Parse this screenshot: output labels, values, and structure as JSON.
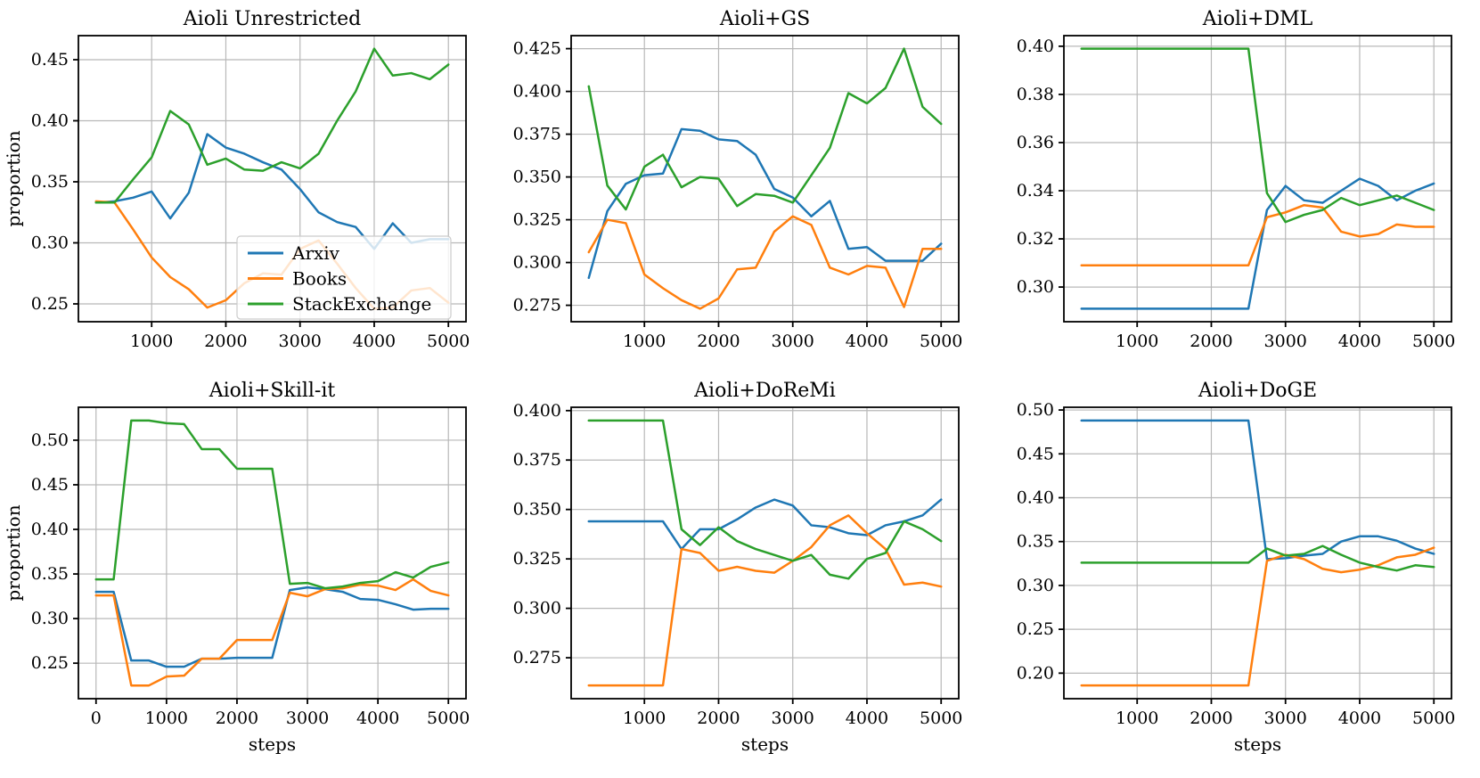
{
  "figure": {
    "background": "#ffffff",
    "grid_color": "#b8b8b8",
    "spine_color": "#000000",
    "legend_edge_color": "#cccccc",
    "legend_fill": "rgba(255,255,255,0.8)"
  },
  "series_colors": {
    "Arxiv": "#1f77b4",
    "Books": "#ff7f0e",
    "StackExchange": "#2ca02c"
  },
  "legend": {
    "labels": [
      "Arxiv",
      "Books",
      "StackExchange"
    ]
  },
  "chart_data": [
    {
      "type": "line",
      "title": "Aioli Unrestricted",
      "xlabel": "",
      "ylabel": "proportion",
      "show_legend": true,
      "grid": true,
      "xlim": [
        12.5,
        5237.5
      ],
      "ylim": [
        0.2354,
        0.4697
      ],
      "xticks": [
        1000,
        2000,
        3000,
        4000,
        5000
      ],
      "yticks": [
        0.25,
        0.3,
        0.35,
        0.4,
        0.45
      ],
      "ytick_decimals": 2,
      "x": [
        250,
        500,
        750,
        1000,
        1250,
        1500,
        1750,
        2000,
        2250,
        2500,
        2750,
        3000,
        3250,
        3500,
        3750,
        4000,
        4250,
        4500,
        4750,
        5000
      ],
      "series": [
        {
          "name": "Arxiv",
          "color": "#1f77b4",
          "values": [
            0.333,
            0.334,
            0.337,
            0.342,
            0.32,
            0.341,
            0.389,
            0.378,
            0.373,
            0.366,
            0.36,
            0.344,
            0.325,
            0.317,
            0.313,
            0.295,
            0.316,
            0.3,
            0.303,
            0.303
          ]
        },
        {
          "name": "Books",
          "color": "#ff7f0e",
          "values": [
            0.334,
            0.333,
            0.311,
            0.288,
            0.272,
            0.262,
            0.247,
            0.253,
            0.267,
            0.275,
            0.274,
            0.295,
            0.302,
            0.283,
            0.263,
            0.246,
            0.247,
            0.261,
            0.263,
            0.251
          ]
        },
        {
          "name": "StackExchange",
          "color": "#2ca02c",
          "values": [
            0.333,
            0.333,
            0.352,
            0.37,
            0.408,
            0.397,
            0.364,
            0.369,
            0.36,
            0.359,
            0.366,
            0.361,
            0.373,
            0.4,
            0.424,
            0.459,
            0.437,
            0.439,
            0.434,
            0.446
          ]
        }
      ]
    },
    {
      "type": "line",
      "title": "Aioli+GS",
      "xlabel": "",
      "ylabel": "",
      "show_legend": false,
      "grid": true,
      "xlim": [
        12.5,
        5237.5
      ],
      "ylim": [
        0.2654,
        0.4326
      ],
      "xticks": [
        1000,
        2000,
        3000,
        4000,
        5000
      ],
      "yticks": [
        0.275,
        0.3,
        0.325,
        0.35,
        0.375,
        0.4,
        0.425
      ],
      "ytick_decimals": 3,
      "x": [
        250,
        500,
        750,
        1000,
        1250,
        1500,
        1750,
        2000,
        2250,
        2500,
        2750,
        3000,
        3250,
        3500,
        3750,
        4000,
        4250,
        4500,
        4750,
        5000
      ],
      "series": [
        {
          "name": "Arxiv",
          "color": "#1f77b4",
          "values": [
            0.291,
            0.33,
            0.346,
            0.351,
            0.352,
            0.378,
            0.377,
            0.372,
            0.371,
            0.363,
            0.343,
            0.338,
            0.327,
            0.336,
            0.308,
            0.309,
            0.301,
            0.301,
            0.301,
            0.311
          ]
        },
        {
          "name": "Books",
          "color": "#ff7f0e",
          "values": [
            0.306,
            0.325,
            0.323,
            0.293,
            0.285,
            0.278,
            0.273,
            0.279,
            0.296,
            0.297,
            0.318,
            0.327,
            0.322,
            0.297,
            0.293,
            0.298,
            0.297,
            0.274,
            0.308,
            0.308
          ]
        },
        {
          "name": "StackExchange",
          "color": "#2ca02c",
          "values": [
            0.403,
            0.345,
            0.331,
            0.356,
            0.363,
            0.344,
            0.35,
            0.349,
            0.333,
            0.34,
            0.339,
            0.335,
            0.351,
            0.367,
            0.399,
            0.393,
            0.402,
            0.425,
            0.391,
            0.381
          ]
        }
      ]
    },
    {
      "type": "line",
      "title": "Aioli+DML",
      "xlabel": "",
      "ylabel": "",
      "show_legend": false,
      "grid": true,
      "xlim": [
        12.5,
        5237.5
      ],
      "ylim": [
        0.2856,
        0.4044
      ],
      "xticks": [
        1000,
        2000,
        3000,
        4000,
        5000
      ],
      "yticks": [
        0.3,
        0.32,
        0.34,
        0.36,
        0.38,
        0.4
      ],
      "ytick_decimals": 2,
      "x": [
        250,
        500,
        750,
        1000,
        1250,
        1500,
        1750,
        2000,
        2250,
        2500,
        2750,
        3000,
        3250,
        3500,
        3750,
        4000,
        4250,
        4500,
        4750,
        5000
      ],
      "series": [
        {
          "name": "Arxiv",
          "color": "#1f77b4",
          "values": [
            0.291,
            0.291,
            0.291,
            0.291,
            0.291,
            0.291,
            0.291,
            0.291,
            0.291,
            0.291,
            0.332,
            0.342,
            0.336,
            0.335,
            0.34,
            0.345,
            0.342,
            0.336,
            0.34,
            0.343
          ]
        },
        {
          "name": "Books",
          "color": "#ff7f0e",
          "values": [
            0.309,
            0.309,
            0.309,
            0.309,
            0.309,
            0.309,
            0.309,
            0.309,
            0.309,
            0.309,
            0.329,
            0.331,
            0.334,
            0.333,
            0.323,
            0.321,
            0.322,
            0.326,
            0.325,
            0.325
          ]
        },
        {
          "name": "StackExchange",
          "color": "#2ca02c",
          "values": [
            0.399,
            0.399,
            0.399,
            0.399,
            0.399,
            0.399,
            0.399,
            0.399,
            0.399,
            0.399,
            0.339,
            0.327,
            0.33,
            0.332,
            0.337,
            0.334,
            0.336,
            0.338,
            0.335,
            0.332
          ]
        }
      ]
    },
    {
      "type": "line",
      "title": "Aioli+Skill-it",
      "xlabel": "steps",
      "ylabel": "proportion",
      "show_legend": false,
      "grid": true,
      "xlim": [
        -250,
        5250
      ],
      "ylim": [
        0.2102,
        0.5369
      ],
      "xticks": [
        0,
        1000,
        2000,
        3000,
        4000,
        5000
      ],
      "yticks": [
        0.25,
        0.3,
        0.35,
        0.4,
        0.45,
        0.5
      ],
      "ytick_decimals": 2,
      "x": [
        0,
        250,
        500,
        750,
        1000,
        1250,
        1500,
        1750,
        2000,
        2250,
        2500,
        2750,
        3000,
        3250,
        3500,
        3750,
        4000,
        4250,
        4500,
        4750,
        5000
      ],
      "series": [
        {
          "name": "Arxiv",
          "color": "#1f77b4",
          "values": [
            0.33,
            0.33,
            0.253,
            0.253,
            0.246,
            0.246,
            0.255,
            0.255,
            0.256,
            0.256,
            0.256,
            0.332,
            0.335,
            0.333,
            0.33,
            0.322,
            0.321,
            0.316,
            0.31,
            0.311,
            0.311
          ]
        },
        {
          "name": "Books",
          "color": "#ff7f0e",
          "values": [
            0.326,
            0.326,
            0.225,
            0.225,
            0.235,
            0.236,
            0.255,
            0.255,
            0.276,
            0.276,
            0.276,
            0.329,
            0.325,
            0.333,
            0.334,
            0.338,
            0.337,
            0.332,
            0.344,
            0.331,
            0.326
          ]
        },
        {
          "name": "StackExchange",
          "color": "#2ca02c",
          "values": [
            0.344,
            0.344,
            0.522,
            0.522,
            0.519,
            0.518,
            0.49,
            0.49,
            0.468,
            0.468,
            0.468,
            0.339,
            0.34,
            0.334,
            0.336,
            0.34,
            0.342,
            0.352,
            0.346,
            0.358,
            0.363
          ]
        }
      ]
    },
    {
      "type": "line",
      "title": "Aioli+DoReMi",
      "xlabel": "steps",
      "ylabel": "",
      "show_legend": false,
      "grid": true,
      "xlim": [
        12.5,
        5237.5
      ],
      "ylim": [
        0.2543,
        0.4017
      ],
      "xticks": [
        1000,
        2000,
        3000,
        4000,
        5000
      ],
      "yticks": [
        0.275,
        0.3,
        0.325,
        0.35,
        0.375,
        0.4
      ],
      "ytick_decimals": 3,
      "x": [
        250,
        500,
        750,
        1000,
        1250,
        1500,
        1750,
        2000,
        2250,
        2500,
        2750,
        3000,
        3250,
        3500,
        3750,
        4000,
        4250,
        4500,
        4750,
        5000
      ],
      "series": [
        {
          "name": "Arxiv",
          "color": "#1f77b4",
          "values": [
            0.344,
            0.344,
            0.344,
            0.344,
            0.344,
            0.33,
            0.34,
            0.34,
            0.345,
            0.351,
            0.355,
            0.352,
            0.342,
            0.341,
            0.338,
            0.337,
            0.342,
            0.344,
            0.347,
            0.355
          ]
        },
        {
          "name": "Books",
          "color": "#ff7f0e",
          "values": [
            0.261,
            0.261,
            0.261,
            0.261,
            0.261,
            0.33,
            0.328,
            0.319,
            0.321,
            0.319,
            0.318,
            0.324,
            0.331,
            0.342,
            0.347,
            0.338,
            0.33,
            0.312,
            0.313,
            0.311
          ]
        },
        {
          "name": "StackExchange",
          "color": "#2ca02c",
          "values": [
            0.395,
            0.395,
            0.395,
            0.395,
            0.395,
            0.34,
            0.332,
            0.341,
            0.334,
            0.33,
            0.327,
            0.324,
            0.327,
            0.317,
            0.315,
            0.325,
            0.328,
            0.344,
            0.34,
            0.334
          ]
        }
      ]
    },
    {
      "type": "line",
      "title": "Aioli+DoGE",
      "xlabel": "steps",
      "ylabel": "",
      "show_legend": false,
      "grid": true,
      "xlim": [
        12.5,
        5237.5
      ],
      "ylim": [
        0.1709,
        0.5031
      ],
      "xticks": [
        1000,
        2000,
        3000,
        4000,
        5000
      ],
      "yticks": [
        0.2,
        0.25,
        0.3,
        0.35,
        0.4,
        0.45,
        0.5
      ],
      "ytick_decimals": 2,
      "x": [
        250,
        500,
        750,
        1000,
        1250,
        1500,
        1750,
        2000,
        2250,
        2500,
        2750,
        3000,
        3250,
        3500,
        3750,
        4000,
        4250,
        4500,
        4750,
        5000
      ],
      "series": [
        {
          "name": "Arxiv",
          "color": "#1f77b4",
          "values": [
            0.488,
            0.488,
            0.488,
            0.488,
            0.488,
            0.488,
            0.488,
            0.488,
            0.488,
            0.488,
            0.33,
            0.331,
            0.334,
            0.336,
            0.35,
            0.356,
            0.356,
            0.351,
            0.342,
            0.336
          ]
        },
        {
          "name": "Books",
          "color": "#ff7f0e",
          "values": [
            0.186,
            0.186,
            0.186,
            0.186,
            0.186,
            0.186,
            0.186,
            0.186,
            0.186,
            0.186,
            0.328,
            0.335,
            0.33,
            0.319,
            0.315,
            0.318,
            0.323,
            0.332,
            0.335,
            0.343
          ]
        },
        {
          "name": "StackExchange",
          "color": "#2ca02c",
          "values": [
            0.326,
            0.326,
            0.326,
            0.326,
            0.326,
            0.326,
            0.326,
            0.326,
            0.326,
            0.326,
            0.342,
            0.334,
            0.336,
            0.345,
            0.335,
            0.326,
            0.321,
            0.317,
            0.323,
            0.321
          ]
        }
      ]
    }
  ]
}
